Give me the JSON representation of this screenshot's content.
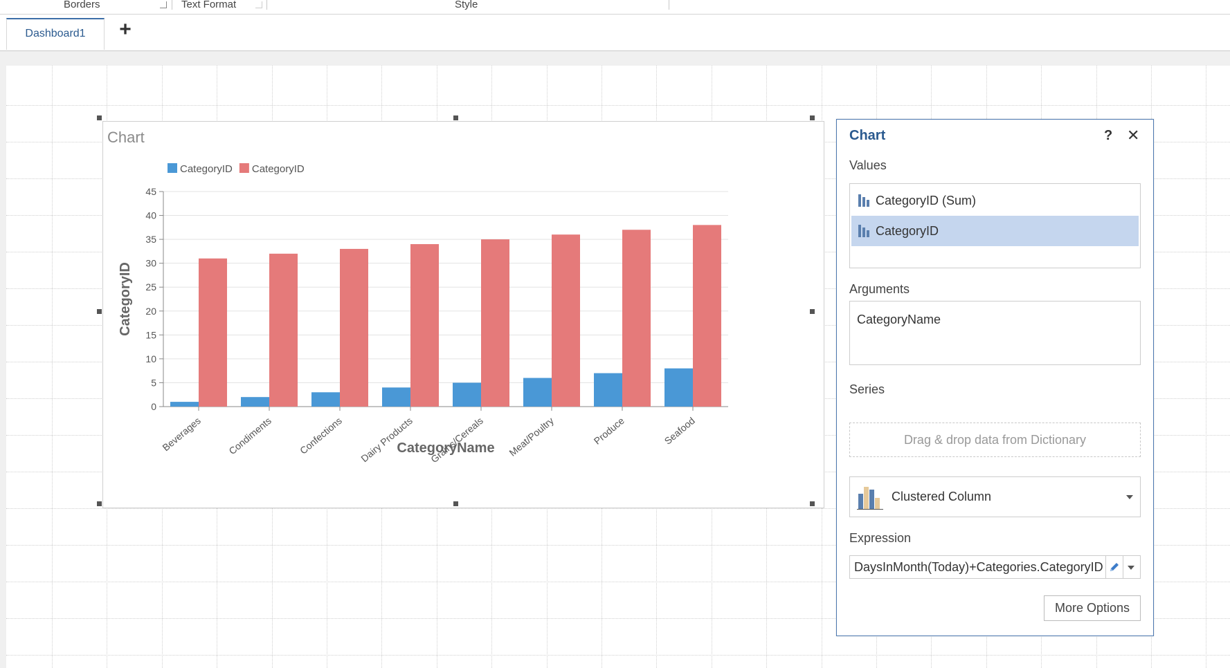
{
  "ribbon": {
    "groups": [
      "Borders",
      "Text Format",
      "Style"
    ]
  },
  "tabs": {
    "items": [
      "Dashboard1"
    ],
    "add_label": "+"
  },
  "chart": {
    "title": "Chart"
  },
  "chart_data": {
    "type": "bar",
    "categories": [
      "Beverages",
      "Condiments",
      "Confections",
      "Dairy Products",
      "Grains/Cereals",
      "Meat/Poultry",
      "Produce",
      "Seafood"
    ],
    "series": [
      {
        "name": "CategoryID",
        "color": "#4a98d6",
        "values": [
          1,
          2,
          3,
          4,
          5,
          6,
          7,
          8
        ]
      },
      {
        "name": "CategoryID",
        "color": "#e57a7a",
        "values": [
          31,
          32,
          33,
          34,
          35,
          36,
          37,
          38
        ]
      }
    ],
    "xlabel": "CategoryName",
    "ylabel": "CategoryID",
    "ylim": [
      0,
      45
    ],
    "yticks": [
      "0",
      "5",
      "10",
      "15",
      "20",
      "25",
      "30",
      "35",
      "40",
      "45"
    ],
    "grid": true,
    "legend": "top-left"
  },
  "panel": {
    "title": "Chart",
    "help": "?",
    "close": "✕",
    "values_label": "Values",
    "values": [
      "CategoryID (Sum)",
      "CategoryID"
    ],
    "arguments_label": "Arguments",
    "argument": "CategoryName",
    "series_label": "Series",
    "series_placeholder": "Drag & drop data from Dictionary",
    "chart_type": "Clustered Column",
    "expression_label": "Expression",
    "expression": "DaysInMonth(Today)+Categories.CategoryID",
    "more_options": "More Options"
  },
  "colors": {
    "accent": "#2b5a8f",
    "selection": "#c5d6ee",
    "series1": "#4a98d6",
    "series2": "#e57a7a"
  }
}
